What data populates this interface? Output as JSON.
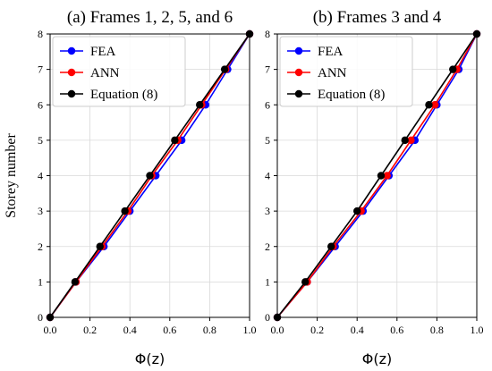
{
  "chart_data": [
    {
      "type": "line",
      "title": "(a) Frames 1, 2, 5, and 6",
      "xlabel": "Φ(z)",
      "ylabel": "Storey number",
      "xlim": [
        0.0,
        1.0
      ],
      "ylim": [
        0,
        8
      ],
      "xticks": [
        "0.0",
        "0.2",
        "0.4",
        "0.6",
        "0.8",
        "1.0"
      ],
      "yticks": [
        "0",
        "1",
        "2",
        "3",
        "4",
        "5",
        "6",
        "7",
        "8"
      ],
      "grid": true,
      "legend_position": "top-left",
      "series": [
        {
          "name": "FEA",
          "color": "#0000ff",
          "x": [
            0.0,
            0.13,
            0.27,
            0.4,
            0.53,
            0.66,
            0.78,
            0.89,
            1.0
          ],
          "y": [
            0,
            1,
            2,
            3,
            4,
            5,
            6,
            7,
            8
          ]
        },
        {
          "name": "ANN",
          "color": "#ff0000",
          "x": [
            0.0,
            0.13,
            0.26,
            0.39,
            0.51,
            0.64,
            0.76,
            0.88,
            1.0
          ],
          "y": [
            0,
            1,
            2,
            3,
            4,
            5,
            6,
            7,
            8
          ]
        },
        {
          "name": "Equation (8)",
          "color": "#000000",
          "x": [
            0.0,
            0.125,
            0.25,
            0.375,
            0.5,
            0.625,
            0.75,
            0.875,
            1.0
          ],
          "y": [
            0,
            1,
            2,
            3,
            4,
            5,
            6,
            7,
            8
          ]
        }
      ]
    },
    {
      "type": "line",
      "title": "(b) Frames 3 and 4",
      "xlabel": "Φ(z)",
      "ylabel": "",
      "xlim": [
        0.0,
        1.0
      ],
      "ylim": [
        0,
        8
      ],
      "xticks": [
        "0.0",
        "0.2",
        "0.4",
        "0.6",
        "0.8",
        "1.0"
      ],
      "yticks": [
        "0",
        "1",
        "2",
        "3",
        "4",
        "5",
        "6",
        "7",
        "8"
      ],
      "grid": true,
      "legend_position": "top-left",
      "series": [
        {
          "name": "FEA",
          "color": "#0000ff",
          "x": [
            0.0,
            0.15,
            0.29,
            0.43,
            0.56,
            0.69,
            0.8,
            0.91,
            1.0
          ],
          "y": [
            0,
            1,
            2,
            3,
            4,
            5,
            6,
            7,
            8
          ]
        },
        {
          "name": "ANN",
          "color": "#ff0000",
          "x": [
            0.0,
            0.15,
            0.28,
            0.42,
            0.55,
            0.67,
            0.79,
            0.9,
            1.0
          ],
          "y": [
            0,
            1,
            2,
            3,
            4,
            5,
            6,
            7,
            8
          ]
        },
        {
          "name": "Equation (8)",
          "color": "#000000",
          "x": [
            0.0,
            0.14,
            0.27,
            0.4,
            0.52,
            0.64,
            0.76,
            0.88,
            1.0
          ],
          "y": [
            0,
            1,
            2,
            3,
            4,
            5,
            6,
            7,
            8
          ]
        }
      ]
    }
  ]
}
